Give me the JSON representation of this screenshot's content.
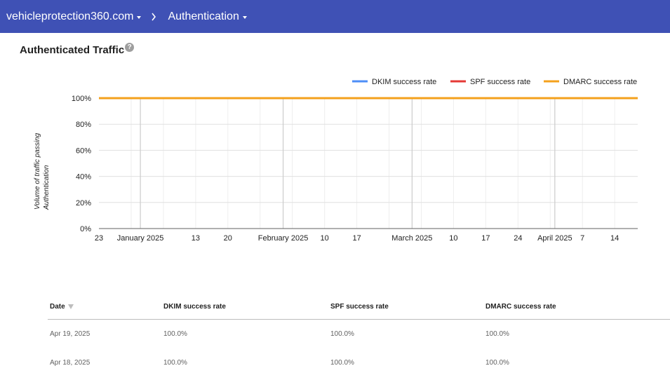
{
  "header": {
    "domain_label": "vehicleprotection360.com",
    "section_label": "Authentication"
  },
  "panel": {
    "title": "Authenticated Traffic",
    "help_glyph": "?"
  },
  "chart_data": {
    "type": "line",
    "title": "",
    "ylabel": "Volume of traffic passing Authentication",
    "ylim": [
      0,
      100
    ],
    "yticks": [
      "0%",
      "20%",
      "40%",
      "60%",
      "80%",
      "100%"
    ],
    "x_range": [
      "2024-12-23",
      "2025-04-19"
    ],
    "xtick_labels": [
      {
        "date": "2024-12-23",
        "label": "23"
      },
      {
        "date": "2025-01-01",
        "label": "January 2025"
      },
      {
        "date": "2025-01-13",
        "label": "13"
      },
      {
        "date": "2025-01-20",
        "label": "20"
      },
      {
        "date": "2025-02-01",
        "label": "February 2025"
      },
      {
        "date": "2025-02-10",
        "label": "10"
      },
      {
        "date": "2025-02-17",
        "label": "17"
      },
      {
        "date": "2025-03-01",
        "label": "March 2025"
      },
      {
        "date": "2025-03-10",
        "label": "10"
      },
      {
        "date": "2025-03-17",
        "label": "17"
      },
      {
        "date": "2025-03-24",
        "label": "24"
      },
      {
        "date": "2025-04-01",
        "label": "April 2025"
      },
      {
        "date": "2025-04-07",
        "label": "7"
      },
      {
        "date": "2025-04-14",
        "label": "14"
      }
    ],
    "month_lines": [
      "2025-01-01",
      "2025-02-01",
      "2025-03-01",
      "2025-04-01"
    ],
    "minor_grid": [
      "2024-12-30",
      "2025-01-06",
      "2025-01-13",
      "2025-01-20",
      "2025-01-27",
      "2025-02-03",
      "2025-02-10",
      "2025-02-17",
      "2025-02-24",
      "2025-03-03",
      "2025-03-10",
      "2025-03-17",
      "2025-03-24",
      "2025-03-31",
      "2025-04-07",
      "2025-04-14"
    ],
    "legend_position": "top-right",
    "series": [
      {
        "name": "DKIM success rate",
        "color": "#4d8ef7",
        "x": [
          "2024-12-23",
          "2025-04-19"
        ],
        "values": [
          100,
          100
        ]
      },
      {
        "name": "SPF success rate",
        "color": "#e53935",
        "x": [
          "2024-12-23",
          "2025-04-19"
        ],
        "values": [
          100,
          100
        ]
      },
      {
        "name": "DMARC success rate",
        "color": "#f4a11c",
        "x": [
          "2024-12-23",
          "2025-04-19"
        ],
        "values": [
          100,
          100
        ]
      }
    ]
  },
  "table": {
    "columns": [
      "Date",
      "DKIM success rate",
      "SPF success rate",
      "DMARC success rate"
    ],
    "rows": [
      [
        "Apr 19, 2025",
        "100.0%",
        "100.0%",
        "100.0%"
      ],
      [
        "Apr 18, 2025",
        "100.0%",
        "100.0%",
        "100.0%"
      ]
    ]
  }
}
